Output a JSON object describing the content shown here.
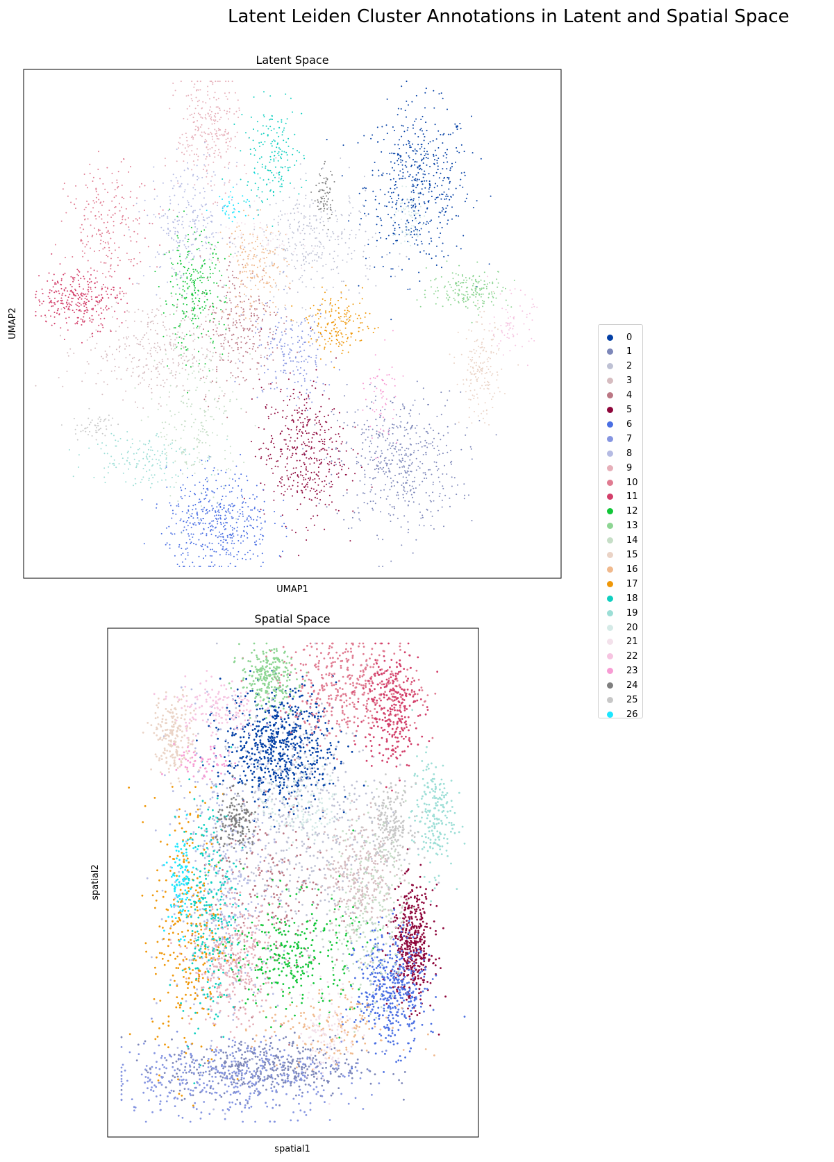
{
  "figure": {
    "suptitle": "Latent Leiden Cluster Annotations in Latent and Spatial Space"
  },
  "palette": {
    "0": "#023fa5",
    "1": "#7d87b9",
    "2": "#bec1d4",
    "3": "#d6bcc0",
    "4": "#bb7784",
    "5": "#8e063b",
    "6": "#4a6fe3",
    "7": "#8595e1",
    "8": "#b5bbe3",
    "9": "#e6afb9",
    "10": "#e07b91",
    "11": "#d33f6a",
    "12": "#11c638",
    "13": "#8dd593",
    "14": "#c6dec7",
    "15": "#ead3c6",
    "16": "#f0b98d",
    "17": "#ef9708",
    "18": "#0fcfc0",
    "19": "#9cded6",
    "20": "#d5eae7",
    "21": "#f3e1eb",
    "22": "#f6c4e1",
    "23": "#f79cd4",
    "24": "#7f7f7f",
    "25": "#c7c7c7",
    "26": "#1ce6ff"
  },
  "chart_data": [
    {
      "type": "scatter",
      "title": "Latent Space",
      "xlabel": "UMAP1",
      "ylabel": "UMAP2",
      "ticks": "none",
      "xlim": [
        0,
        100
      ],
      "ylim": [
        0,
        100
      ],
      "clusters": [
        {
          "name": "0",
          "center": [
            74,
            78
          ],
          "spread": [
            5,
            8
          ],
          "n": 520
        },
        {
          "name": "1",
          "center": [
            70,
            22
          ],
          "spread": [
            6,
            7
          ],
          "n": 500
        },
        {
          "name": "2",
          "center": [
            54,
            66
          ],
          "spread": [
            6,
            6
          ],
          "n": 320
        },
        {
          "name": "3",
          "center": [
            24,
            45
          ],
          "spread": [
            7,
            5
          ],
          "n": 350
        },
        {
          "name": "4",
          "center": [
            40,
            50
          ],
          "spread": [
            4,
            7
          ],
          "n": 260
        },
        {
          "name": "5",
          "center": [
            52,
            24
          ],
          "spread": [
            4,
            7
          ],
          "n": 430
        },
        {
          "name": "6",
          "center": [
            36,
            10
          ],
          "spread": [
            5,
            5
          ],
          "n": 460
        },
        {
          "name": "7",
          "center": [
            50,
            44
          ],
          "spread": [
            4,
            5
          ],
          "n": 180
        },
        {
          "name": "8",
          "center": [
            30,
            70
          ],
          "spread": [
            4,
            6
          ],
          "n": 250
        },
        {
          "name": "9",
          "center": [
            34,
            89
          ],
          "spread": [
            3,
            6
          ],
          "n": 260
        },
        {
          "name": "10",
          "center": [
            15,
            70
          ],
          "spread": [
            4,
            6
          ],
          "n": 220
        },
        {
          "name": "11",
          "center": [
            9,
            55
          ],
          "spread": [
            4,
            3
          ],
          "n": 300
        },
        {
          "name": "12",
          "center": [
            31,
            56
          ],
          "spread": [
            3,
            6
          ],
          "n": 250
        },
        {
          "name": "13",
          "center": [
            84,
            57
          ],
          "spread": [
            4,
            2
          ],
          "n": 180
        },
        {
          "name": "14",
          "center": [
            32,
            30
          ],
          "spread": [
            4,
            8
          ],
          "n": 200
        },
        {
          "name": "15",
          "center": [
            86,
            40
          ],
          "spread": [
            2,
            5
          ],
          "n": 170
        },
        {
          "name": "16",
          "center": [
            43,
            61
          ],
          "spread": [
            3,
            5
          ],
          "n": 180
        },
        {
          "name": "17",
          "center": [
            59,
            50
          ],
          "spread": [
            3,
            3
          ],
          "n": 170
        },
        {
          "name": "18",
          "center": [
            46,
            84
          ],
          "spread": [
            3,
            5
          ],
          "n": 170
        },
        {
          "name": "19",
          "center": [
            21,
            23
          ],
          "spread": [
            5,
            3
          ],
          "n": 150
        },
        {
          "name": "20",
          "center": [
            72,
            71
          ],
          "spread": [
            1.5,
            3
          ],
          "n": 70
        },
        {
          "name": "21",
          "center": [
            46,
            67
          ],
          "spread": [
            5,
            3
          ],
          "n": 60
        },
        {
          "name": "22",
          "center": [
            92,
            50
          ],
          "spread": [
            2,
            3
          ],
          "n": 70
        },
        {
          "name": "23",
          "center": [
            67,
            35
          ],
          "spread": [
            1.5,
            5
          ],
          "n": 60
        },
        {
          "name": "24",
          "center": [
            56,
            76
          ],
          "spread": [
            1,
            3
          ],
          "n": 70
        },
        {
          "name": "25",
          "center": [
            12,
            29
          ],
          "spread": [
            2,
            1.5
          ],
          "n": 50
        },
        {
          "name": "26",
          "center": [
            39,
            74
          ],
          "spread": [
            2,
            1.5
          ],
          "n": 40
        }
      ]
    },
    {
      "type": "scatter",
      "title": "Spatial Space",
      "xlabel": "spatial1",
      "ylabel": "spatial2",
      "ticks": "none",
      "xlim": [
        0,
        100
      ],
      "ylim": [
        0,
        100
      ],
      "clusters": [
        {
          "name": "0",
          "center": [
            46,
            78
          ],
          "spread": [
            8,
            6
          ],
          "n": 700
        },
        {
          "name": "1",
          "center": [
            42,
            12
          ],
          "spread": [
            14,
            3
          ],
          "n": 450
        },
        {
          "name": "2",
          "center": [
            52,
            62
          ],
          "spread": [
            12,
            12
          ],
          "n": 450
        },
        {
          "name": "3",
          "center": [
            69,
            52
          ],
          "spread": [
            5,
            6
          ],
          "n": 300
        },
        {
          "name": "4",
          "center": [
            44,
            48
          ],
          "spread": [
            8,
            10
          ],
          "n": 200
        },
        {
          "name": "5",
          "center": [
            84,
            37
          ],
          "spread": [
            3,
            6
          ],
          "n": 450
        },
        {
          "name": "6",
          "center": [
            78,
            28
          ],
          "spread": [
            5,
            6
          ],
          "n": 450
        },
        {
          "name": "7",
          "center": [
            32,
            10
          ],
          "spread": [
            18,
            4
          ],
          "n": 400
        },
        {
          "name": "8",
          "center": [
            30,
            50
          ],
          "spread": [
            8,
            14
          ],
          "n": 450
        },
        {
          "name": "9",
          "center": [
            33,
            33
          ],
          "spread": [
            6,
            6
          ],
          "n": 350
        },
        {
          "name": "10",
          "center": [
            66,
            90
          ],
          "spread": [
            10,
            5
          ],
          "n": 400
        },
        {
          "name": "11",
          "center": [
            78,
            86
          ],
          "spread": [
            4,
            6
          ],
          "n": 300
        },
        {
          "name": "12",
          "center": [
            50,
            35
          ],
          "spread": [
            9,
            6
          ],
          "n": 300
        },
        {
          "name": "13",
          "center": [
            43,
            92
          ],
          "spread": [
            4,
            3
          ],
          "n": 250
        },
        {
          "name": "14",
          "center": [
            72,
            45
          ],
          "spread": [
            5,
            10
          ],
          "n": 250
        },
        {
          "name": "15",
          "center": [
            16,
            80
          ],
          "spread": [
            3,
            4
          ],
          "n": 200
        },
        {
          "name": "16",
          "center": [
            60,
            20
          ],
          "spread": [
            10,
            4
          ],
          "n": 150
        },
        {
          "name": "17",
          "center": [
            20,
            40
          ],
          "spread": [
            5,
            14
          ],
          "n": 300
        },
        {
          "name": "18",
          "center": [
            26,
            45
          ],
          "spread": [
            4,
            12
          ],
          "n": 250
        },
        {
          "name": "19",
          "center": [
            90,
            64
          ],
          "spread": [
            3,
            6
          ],
          "n": 200
        },
        {
          "name": "20",
          "center": [
            52,
            66
          ],
          "spread": [
            6,
            4
          ],
          "n": 150
        },
        {
          "name": "21",
          "center": [
            60,
            20
          ],
          "spread": [
            4,
            5
          ],
          "n": 120
        },
        {
          "name": "22",
          "center": [
            28,
            86
          ],
          "spread": [
            6,
            3
          ],
          "n": 150
        },
        {
          "name": "23",
          "center": [
            24,
            74
          ],
          "spread": [
            4,
            2
          ],
          "n": 60
        },
        {
          "name": "24",
          "center": [
            34,
            62
          ],
          "spread": [
            3,
            3
          ],
          "n": 150
        },
        {
          "name": "25",
          "center": [
            78,
            62
          ],
          "spread": [
            3,
            4
          ],
          "n": 200
        },
        {
          "name": "26",
          "center": [
            18,
            50
          ],
          "spread": [
            2,
            5
          ],
          "n": 100
        }
      ]
    }
  ],
  "legend": {
    "position": "right",
    "entries": [
      "0",
      "1",
      "2",
      "3",
      "4",
      "5",
      "6",
      "7",
      "8",
      "9",
      "10",
      "11",
      "12",
      "13",
      "14",
      "15",
      "16",
      "17",
      "18",
      "19",
      "20",
      "21",
      "22",
      "23",
      "24",
      "25",
      "26"
    ]
  }
}
